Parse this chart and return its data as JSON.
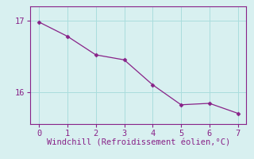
{
  "x": [
    0,
    1,
    2,
    3,
    4,
    5,
    6,
    7
  ],
  "y": [
    16.98,
    16.78,
    16.52,
    16.45,
    16.1,
    15.82,
    15.84,
    15.7
  ],
  "line_color": "#882288",
  "marker": "D",
  "marker_size": 2.5,
  "bg_color": "#d8f0f0",
  "grid_color": "#aadddd",
  "xlabel": "Windchill (Refroidissement éolien,°C)",
  "xlabel_color": "#882288",
  "tick_color": "#882288",
  "spine_color": "#882288",
  "xlim": [
    -0.3,
    7.3
  ],
  "ylim": [
    15.55,
    17.2
  ],
  "yticks": [
    16,
    17
  ],
  "xticks": [
    0,
    1,
    2,
    3,
    4,
    5,
    6,
    7
  ],
  "font_size": 7.5,
  "xlabel_font_size": 7.5
}
